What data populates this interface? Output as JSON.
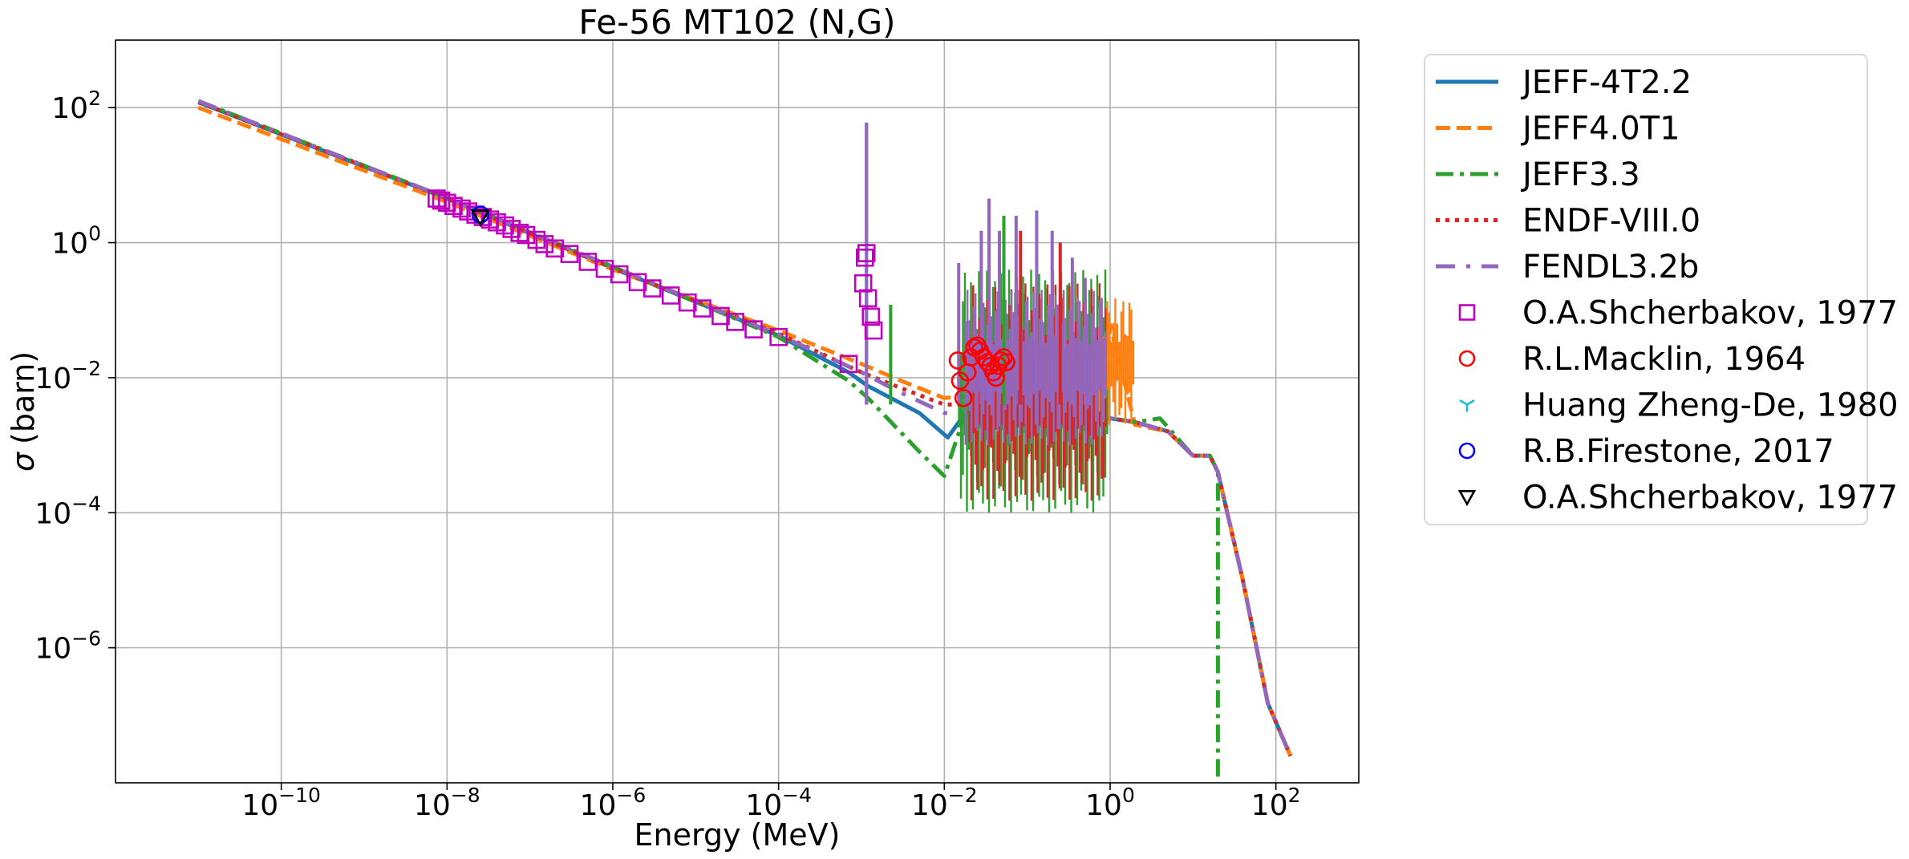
{
  "chart_data": {
    "type": "line",
    "title": "Fe-56 MT102 (N,G)",
    "xlabel": "Energy (MeV)",
    "ylabel_symbol": "σ",
    "ylabel_unit": "(barn)",
    "xscale": "log",
    "yscale": "log",
    "xlim": [
      1e-12,
      1000.0
    ],
    "ylim": [
      1e-08,
      1000.0
    ],
    "grid": true,
    "legend_position": "outside-right-top",
    "x_ticks": [
      {
        "base": "10",
        "exp": "−10",
        "value": 1e-10
      },
      {
        "base": "10",
        "exp": "−8",
        "value": 1e-08
      },
      {
        "base": "10",
        "exp": "−6",
        "value": 1e-06
      },
      {
        "base": "10",
        "exp": "−4",
        "value": 0.0001
      },
      {
        "base": "10",
        "exp": "−2",
        "value": 0.01
      },
      {
        "base": "10",
        "exp": "0",
        "value": 1
      },
      {
        "base": "10",
        "exp": "2",
        "value": 100
      }
    ],
    "y_ticks": [
      {
        "base": "10",
        "exp": "2",
        "value": 100
      },
      {
        "base": "10",
        "exp": "0",
        "value": 1
      },
      {
        "base": "10",
        "exp": "−2",
        "value": 0.01
      },
      {
        "base": "10",
        "exp": "−4",
        "value": 0.0001
      },
      {
        "base": "10",
        "exp": "−6",
        "value": 1e-06
      }
    ],
    "series": [
      {
        "name": "JEFF-4T2.2",
        "style": "solid",
        "color": "#1f77b4",
        "x": [
          1e-11,
          1e-08,
          1e-06,
          0.0001,
          0.0007,
          0.0012,
          0.005,
          0.011,
          0.018,
          0.05,
          0.3,
          1.0,
          2.0,
          5.0,
          10,
          16,
          20,
          40,
          80,
          150
        ],
        "y": [
          120,
          4.5,
          0.42,
          0.042,
          0.012,
          0.0075,
          0.003,
          0.0013,
          0.003,
          0.004,
          0.003,
          0.0025,
          0.0022,
          0.0016,
          0.0007,
          0.0007,
          0.0004,
          1e-05,
          1.5e-07,
          2.5e-08
        ]
      },
      {
        "name": "JEFF4.0T1",
        "style": "dashed",
        "color": "#ff7f0e",
        "x": [
          1e-11,
          1e-08,
          1e-06,
          0.0001,
          0.001,
          0.003,
          0.01,
          0.05,
          0.3,
          0.85,
          1.0,
          2.0,
          5.0,
          10,
          16,
          20,
          40,
          80,
          150
        ],
        "y": [
          100,
          4.0,
          0.4,
          0.05,
          0.016,
          0.009,
          0.005,
          0.006,
          0.005,
          0.003,
          0.06,
          0.002,
          0.0016,
          0.0007,
          0.0007,
          0.0004,
          1e-05,
          1.5e-07,
          2.5e-08
        ]
      },
      {
        "name": "JEFF3.3",
        "style": "dashdot",
        "color": "#2ca02c",
        "x": [
          1e-11,
          1e-08,
          1e-06,
          0.0001,
          0.0007,
          0.0012,
          0.005,
          0.01,
          0.018,
          0.05,
          0.3,
          0.8,
          1.0,
          2.0,
          4.0,
          10,
          16,
          20,
          20.0001
        ],
        "y": [
          125,
          4.6,
          0.44,
          0.04,
          0.009,
          0.005,
          0.0008,
          0.00035,
          0.003,
          0.002,
          0.002,
          0.003,
          0.0025,
          0.0022,
          0.0025,
          0.0007,
          0.0007,
          0.0004,
          1e-08
        ]
      },
      {
        "name": "ENDF-VIII.0",
        "style": "dotted",
        "color": "#d62728",
        "x": [
          1e-11,
          1e-08,
          1e-06,
          0.0001,
          0.001,
          0.003,
          0.01,
          0.02,
          0.05,
          0.3,
          1.0,
          2.0,
          5.0,
          10,
          16,
          20,
          40,
          80,
          150
        ],
        "y": [
          120,
          4.5,
          0.42,
          0.045,
          0.012,
          0.007,
          0.004,
          0.004,
          0.003,
          0.002,
          0.0025,
          0.0022,
          0.0016,
          0.0007,
          0.0007,
          0.0004,
          1e-05,
          1.5e-07,
          2.5e-08
        ]
      },
      {
        "name": "FENDL3.2b",
        "style": "loosedashdot",
        "color": "#9467bd",
        "x": [
          1e-11,
          1e-08,
          1e-06,
          0.0001,
          0.001,
          0.003,
          0.01,
          0.02,
          0.05,
          0.3,
          1.0,
          2.0,
          5.0,
          10,
          16,
          20,
          40,
          80,
          150
        ],
        "y": [
          125,
          4.6,
          0.44,
          0.043,
          0.012,
          0.006,
          0.003,
          0.003,
          0.003,
          0.002,
          0.0025,
          0.0022,
          0.0016,
          0.0007,
          0.0007,
          0.0004,
          1e-05,
          1.5e-07,
          2.5e-08
        ]
      }
    ],
    "resonances": [
      {
        "x": 0.00115,
        "peak": 60,
        "color": "#1f77b4"
      },
      {
        "x": 0.00115,
        "peak": 60,
        "color": "#9467bd"
      },
      {
        "x": 0.00225,
        "peak": 0.12,
        "color": "#2ca02c"
      },
      {
        "x": 0.0149,
        "peak": 0.5,
        "color": "#9467bd"
      },
      {
        "x": 0.0279,
        "peak": 1.5,
        "color": "#9467bd"
      },
      {
        "x": 0.0346,
        "peak": 4.5,
        "color": "#ff7f0e"
      },
      {
        "x": 0.0346,
        "peak": 4.5,
        "color": "#9467bd"
      },
      {
        "x": 0.0462,
        "peak": 1.5,
        "color": "#9467bd"
      },
      {
        "x": 0.0522,
        "peak": 2.5,
        "color": "#2ca02c"
      },
      {
        "x": 0.0735,
        "peak": 2.5,
        "color": "#9467bd"
      },
      {
        "x": 0.083,
        "peak": 1.5,
        "color": "#d62728"
      },
      {
        "x": 0.13,
        "peak": 3.0,
        "color": "#9467bd"
      },
      {
        "x": 0.2,
        "peak": 1.5,
        "color": "#9467bd"
      },
      {
        "x": 0.25,
        "peak": 1.0,
        "color": "#d62728"
      },
      {
        "x": 0.35,
        "peak": 0.6,
        "color": "#9467bd"
      },
      {
        "x": 0.5,
        "peak": 0.3,
        "color": "#9467bd"
      }
    ],
    "resonance_bands": [
      {
        "x_from": 0.015,
        "x_to": 0.97,
        "y_top": 0.4,
        "y_bottom": 0.0001,
        "color": "#2ca02c"
      },
      {
        "x_from": 0.02,
        "x_to": 0.9,
        "y_top": 0.25,
        "y_bottom": 0.00015,
        "color": "#d62728"
      },
      {
        "x_from": 0.7,
        "x_to": 2.0,
        "y_top": 0.15,
        "y_bottom": 0.002,
        "color": "#ff7f0e"
      },
      {
        "x_from": 0.018,
        "x_to": 0.9,
        "y_top": 0.2,
        "y_bottom": 0.001,
        "color": "#9467bd"
      }
    ],
    "experimental": [
      {
        "name": "O.A.Shcherbakov, 1977",
        "marker": "square",
        "color": "#bf00bf",
        "x": [
          7.5e-09,
          8.5e-09,
          1e-08,
          1.2e-08,
          1.5e-08,
          1.8e-08,
          2.2e-08,
          2.7e-08,
          3.3e-08,
          4e-08,
          5e-08,
          6e-08,
          7.5e-08,
          9e-08,
          1.2e-07,
          1.5e-07,
          2e-07,
          3e-07,
          5e-07,
          8e-07,
          1.2e-06,
          2e-06,
          3e-06,
          5e-06,
          8e-06,
          1.2e-05,
          2e-05,
          3e-05,
          5e-05,
          0.0001,
          0.0007,
          0.00105,
          0.0011,
          0.00115,
          0.0012,
          0.0013,
          0.0014
        ],
        "y": [
          4.5,
          4.2,
          3.9,
          3.5,
          3.2,
          2.9,
          2.6,
          2.4,
          2.2,
          2.0,
          1.8,
          1.6,
          1.4,
          1.3,
          1.1,
          0.95,
          0.82,
          0.68,
          0.52,
          0.41,
          0.34,
          0.26,
          0.21,
          0.165,
          0.13,
          0.106,
          0.082,
          0.067,
          0.052,
          0.04,
          0.016,
          0.25,
          0.6,
          0.7,
          0.15,
          0.08,
          0.05
        ]
      },
      {
        "name": "R.L.Macklin, 1964",
        "marker": "circle",
        "color": "#ff0000",
        "x": [
          0.0145,
          0.0155,
          0.017,
          0.019,
          0.021,
          0.023,
          0.025,
          0.027,
          0.03,
          0.033,
          0.036,
          0.039,
          0.042,
          0.045,
          0.048,
          0.052,
          0.056
        ],
        "y": [
          0.018,
          0.009,
          0.005,
          0.012,
          0.02,
          0.028,
          0.03,
          0.025,
          0.02,
          0.017,
          0.015,
          0.012,
          0.01,
          0.015,
          0.018,
          0.02,
          0.017
        ]
      },
      {
        "name": "Huang Zheng-De, 1980",
        "marker": "tri",
        "color": "#17becf",
        "x": [],
        "y": []
      },
      {
        "name": "R.B.Firestone, 2017",
        "marker": "circle",
        "color": "#0000ff",
        "x": [
          2.53e-08
        ],
        "y": [
          2.6
        ]
      },
      {
        "name": "O.A.Shcherbakov, 1977",
        "marker": "tri_down",
        "color": "#000000",
        "x": [
          2.53e-08
        ],
        "y": [
          2.4
        ]
      }
    ]
  }
}
